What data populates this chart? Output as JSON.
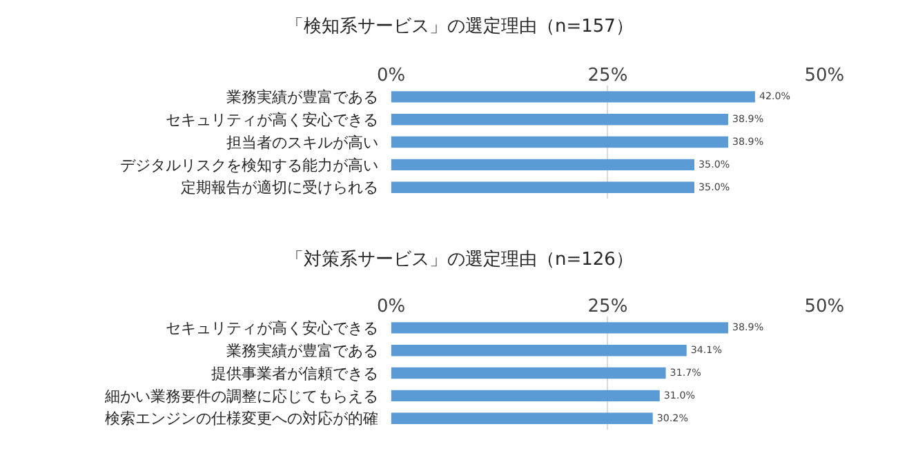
{
  "chart_data": [
    {
      "type": "bar",
      "orientation": "horizontal",
      "title": "「検知系サービス」の選定理由（n=157）",
      "categories": [
        "業務実績が豊富である",
        "セキュリティが高く安心できる",
        "担当者のスキルが高い",
        "デジタルリスクを検知する能力が高い",
        "定期報告が適切に受けられる"
      ],
      "values": [
        42.0,
        38.9,
        38.9,
        35.0,
        35.0
      ],
      "value_labels": [
        "42.0%",
        "38.9%",
        "38.9%",
        "35.0%",
        "35.0%"
      ],
      "color": "#5b9bd5",
      "xlim": [
        0,
        50
      ],
      "xticks": [
        {
          "value": 0,
          "label": "0%"
        },
        {
          "value": 25,
          "label": "25%"
        },
        {
          "value": 50,
          "label": "50%"
        }
      ],
      "grid": "x"
    },
    {
      "type": "bar",
      "orientation": "horizontal",
      "title": "「対策系サービス」の選定理由（n=126）",
      "categories": [
        "セキュリティが高く安心できる",
        "業務実績が豊富である",
        "提供事業者が信頼できる",
        "細かい業務要件の調整に応じてもらえる",
        "検索エンジンの仕様変更への対応が的確"
      ],
      "values": [
        38.9,
        34.1,
        31.7,
        31.0,
        30.2
      ],
      "value_labels": [
        "38.9%",
        "34.1%",
        "31.7%",
        "31.0%",
        "30.2%"
      ],
      "color": "#5b9bd5",
      "xlim": [
        0,
        50
      ],
      "xticks": [
        {
          "value": 0,
          "label": "0%"
        },
        {
          "value": 25,
          "label": "25%"
        },
        {
          "value": 50,
          "label": "50%"
        }
      ],
      "grid": "x"
    }
  ]
}
